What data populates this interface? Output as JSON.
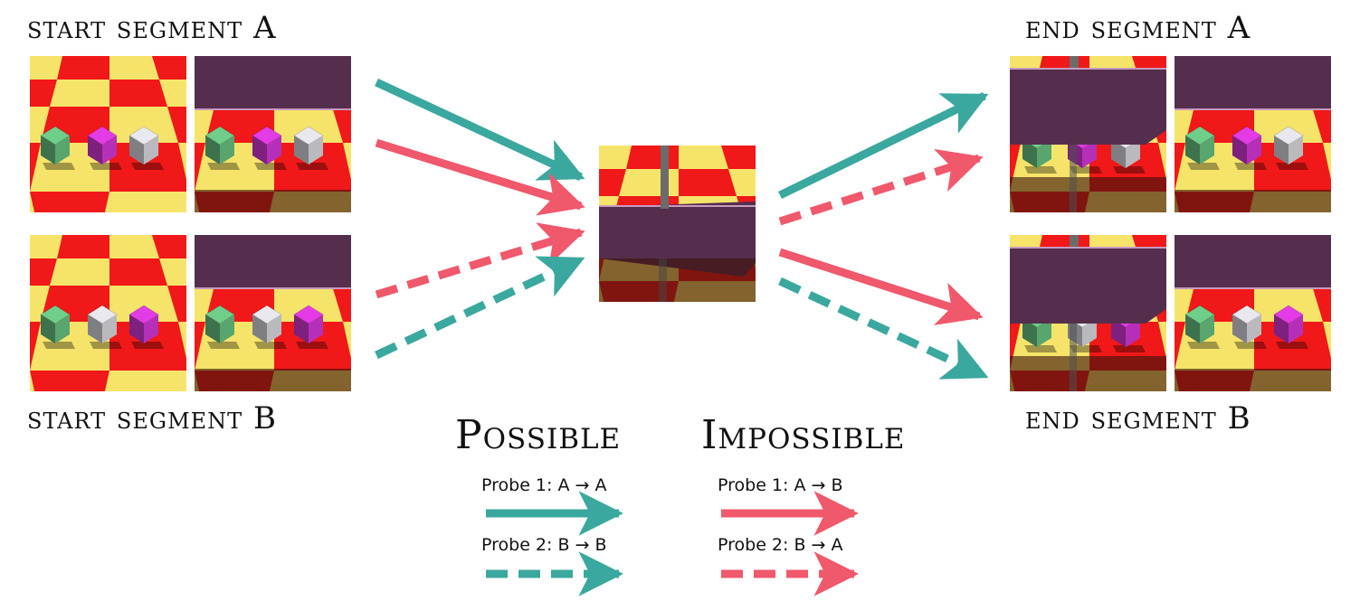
{
  "labels": {
    "start_a": "start segment A",
    "start_b": "start segment B",
    "end_a": "end segment A",
    "end_b": "end segment B"
  },
  "legend": {
    "possible_title": "Possible",
    "impossible_title": "Impossible",
    "possible_probe1": "Probe 1: A → A",
    "possible_probe2": "Probe 2: B → B",
    "impossible_probe1": "Probe 1: A → B",
    "impossible_probe2": "Probe 2: B → A"
  },
  "colors": {
    "possible": "#3aa89e",
    "impossible": "#f0586c",
    "checker_red": "#f01818",
    "checker_yellow": "#f6e46a",
    "occluder": "#552e4e",
    "cube_green": "#6fcf8a",
    "cube_magenta": "#e33be6",
    "cube_white": "#e8e8ee"
  }
}
